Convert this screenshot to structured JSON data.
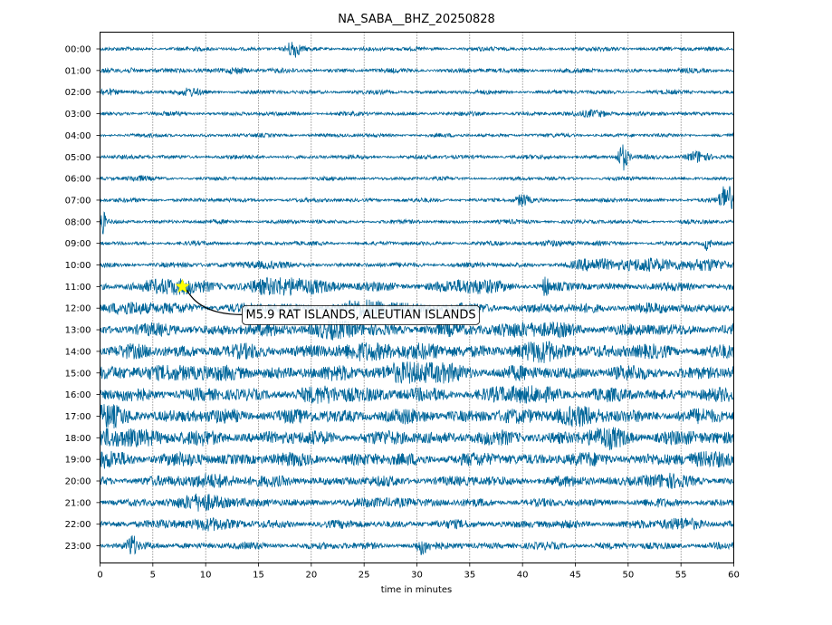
{
  "chart_data": {
    "type": "line",
    "title": "NA_SABA__BHZ_20250828",
    "xlabel": "time in minutes",
    "ylabel": "",
    "xlim": [
      0,
      60
    ],
    "xticks": [
      0,
      5,
      10,
      15,
      20,
      25,
      30,
      35,
      40,
      45,
      50,
      55,
      60
    ],
    "x_grid": "dotted vertical lines",
    "trace_color": "#00669a",
    "rows": [
      {
        "label": "00:00",
        "amp": 2.0,
        "bursts": [
          [
            18.3,
            9,
            0.6
          ]
        ]
      },
      {
        "label": "01:00",
        "amp": 2.2,
        "bursts": [
          [
            3.0,
            2,
            1.0
          ],
          [
            13.0,
            3,
            1.0
          ]
        ]
      },
      {
        "label": "02:00",
        "amp": 2.0,
        "bursts": [
          [
            0.5,
            3,
            1.5
          ],
          [
            8.5,
            3,
            1.0
          ]
        ]
      },
      {
        "label": "03:00",
        "amp": 2.0,
        "bursts": [
          [
            47.0,
            3,
            1.5
          ]
        ]
      },
      {
        "label": "04:00",
        "amp": 1.8,
        "bursts": []
      },
      {
        "label": "05:00",
        "amp": 2.0,
        "bursts": [
          [
            49.5,
            14,
            0.5
          ],
          [
            56.5,
            6,
            1.0
          ]
        ]
      },
      {
        "label": "06:00",
        "amp": 1.8,
        "bursts": [
          [
            3.5,
            2,
            1.0
          ]
        ]
      },
      {
        "label": "07:00",
        "amp": 2.0,
        "bursts": [
          [
            40.0,
            6,
            0.6
          ],
          [
            59.3,
            18,
            0.6
          ]
        ]
      },
      {
        "label": "08:00",
        "amp": 2.0,
        "bursts": [
          [
            0.2,
            14,
            0.3
          ]
        ]
      },
      {
        "label": "09:00",
        "amp": 2.0,
        "bursts": [
          [
            57.5,
            7,
            0.3
          ],
          [
            43.0,
            2,
            2.0
          ]
        ]
      },
      {
        "label": "10:00",
        "amp": 2.5,
        "bursts": [
          [
            15.0,
            3,
            2.0
          ],
          [
            47.0,
            5,
            2.0
          ],
          [
            52.0,
            6,
            3.0
          ],
          [
            58.0,
            5,
            2.0
          ]
        ]
      },
      {
        "label": "11:00",
        "amp": 4.0,
        "bursts": [
          [
            7.0,
            6,
            3.0
          ],
          [
            18.0,
            7,
            4.0
          ],
          [
            35.0,
            5,
            3.0
          ],
          [
            42.2,
            10,
            0.3
          ]
        ]
      },
      {
        "label": "12:00",
        "amp": 5.0,
        "bursts": [
          [
            3.0,
            4,
            2.0
          ],
          [
            26.0,
            5,
            3.0
          ]
        ]
      },
      {
        "label": "13:00",
        "amp": 6.0,
        "bursts": [
          [
            22.0,
            4,
            3.0
          ],
          [
            40.0,
            4,
            3.0
          ]
        ]
      },
      {
        "label": "14:00",
        "amp": 7.0,
        "bursts": [
          [
            27.0,
            5,
            3.0
          ],
          [
            42.0,
            4,
            3.0
          ]
        ]
      },
      {
        "label": "15:00",
        "amp": 7.0,
        "bursts": [
          [
            8.0,
            5,
            2.0
          ],
          [
            30.0,
            6,
            4.0
          ]
        ]
      },
      {
        "label": "16:00",
        "amp": 6.5,
        "bursts": [
          [
            23.0,
            4,
            3.0
          ],
          [
            40.0,
            4,
            3.0
          ]
        ]
      },
      {
        "label": "17:00",
        "amp": 7.0,
        "bursts": [
          [
            0.5,
            5,
            2.0
          ],
          [
            44.5,
            6,
            2.0
          ]
        ]
      },
      {
        "label": "18:00",
        "amp": 7.0,
        "bursts": [
          [
            2.0,
            5,
            4.0
          ],
          [
            48.0,
            5,
            2.0
          ]
        ]
      },
      {
        "label": "19:00",
        "amp": 6.5,
        "bursts": [
          [
            0.5,
            4,
            2.0
          ],
          [
            59.0,
            4,
            2.0
          ]
        ]
      },
      {
        "label": "20:00",
        "amp": 5.0,
        "bursts": [
          [
            11.0,
            4,
            3.0
          ],
          [
            53.0,
            4,
            2.0
          ]
        ]
      },
      {
        "label": "21:00",
        "amp": 4.0,
        "bursts": [
          [
            10.0,
            8,
            2.0
          ],
          [
            28.0,
            3,
            2.0
          ]
        ]
      },
      {
        "label": "22:00",
        "amp": 4.0,
        "bursts": [
          [
            10.0,
            5,
            2.0
          ],
          [
            55.0,
            4,
            2.0
          ]
        ]
      },
      {
        "label": "23:00",
        "amp": 3.5,
        "bursts": [
          [
            3.0,
            10,
            0.4
          ],
          [
            30.5,
            7,
            0.5
          ]
        ]
      }
    ],
    "event": {
      "label": "M5.9 RAT ISLANDS, ALEUTIAN ISLANDS",
      "row": "11:00",
      "minute": 7.8,
      "marker": "star",
      "marker_color": "#ffff00"
    }
  }
}
